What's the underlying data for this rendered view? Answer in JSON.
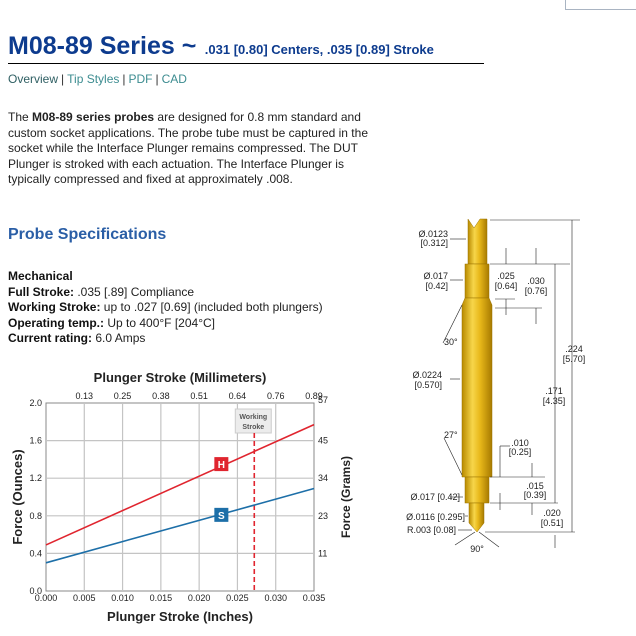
{
  "header": {
    "title": "M08-89 Series ~",
    "subtitle": ".031 [0.80] Centers, .035 [0.89] Stroke"
  },
  "nav": [
    {
      "label": "Overview"
    },
    {
      "label": "Tip Styles"
    },
    {
      "label": "PDF"
    },
    {
      "label": "CAD"
    }
  ],
  "intro": {
    "bold": "M08-89 series probes",
    "text": " are designed for 0.8 mm standard and custom socket applications. The probe tube must be captured in the socket while the Interface Plunger remains compressed. The DUT Plunger is stroked with each actuation. The Interface Plunger is typically compressed and fixed at approximately .008."
  },
  "intro_prefix": "The ",
  "specs": {
    "heading": "Probe Specifications",
    "section": "Mechanical",
    "rows": [
      {
        "label": "Full Stroke:",
        "value": " .035 [.89] Compliance"
      },
      {
        "label": "Working Stroke:",
        "value": " up to .027 [0.69] (included both plungers)"
      },
      {
        "label": "Operating temp.:",
        "value": " Up to 400°F [204°C]"
      },
      {
        "label": "Current rating:",
        "value": " 6.0 Amps"
      }
    ]
  },
  "chart_data": {
    "type": "line",
    "title": "Plunger Stroke (Millimeters)",
    "xlabel": "Plunger Stroke (Inches)",
    "ylabel": "Force (Ounces)",
    "y2label": "Force (Grams)",
    "xlim": [
      0,
      0.035
    ],
    "ylim": [
      0,
      2.0
    ],
    "x_ticks": [
      "0.000",
      "0.005",
      "0.010",
      "0.015",
      "0.020",
      "0.025",
      "0.030",
      "0.035"
    ],
    "x_tick_values": [
      0,
      0.005,
      0.01,
      0.015,
      0.02,
      0.025,
      0.03,
      0.035
    ],
    "x2_ticks": [
      "0.13",
      "0.25",
      "0.38",
      "0.51",
      "0.64",
      "0.76",
      "0.89"
    ],
    "y_ticks": [
      "0.0",
      "0.4",
      "0.8",
      "1.2",
      "1.6",
      "2.0"
    ],
    "y_tick_values": [
      0,
      0.4,
      0.8,
      1.2,
      1.6,
      2.0
    ],
    "y2_ticks": [
      "11",
      "23",
      "34",
      "45",
      "57"
    ],
    "grid": true,
    "series": [
      {
        "name": "H",
        "color": "#e0252f",
        "x": [
          0,
          0.035
        ],
        "y": [
          0.49,
          1.77
        ],
        "label_x": 0.0229,
        "label_y": 1.35
      },
      {
        "name": "S",
        "color": "#1d6fa8",
        "x": [
          0,
          0.035
        ],
        "y": [
          0.3,
          1.09
        ],
        "label_x": 0.0229,
        "label_y": 0.81
      }
    ],
    "annotation": {
      "text1": "Working",
      "text2": "Stroke",
      "x": 0.0272,
      "color": "#e0252f"
    }
  },
  "diagram": {
    "labels": {
      "tip_dia": "Ø.0123",
      "tip_dia_mm": "[0.312]",
      "collar_dia": "Ø.017",
      "collar_dia_mm": "[0.42]",
      "angle_top": "30°",
      "body_dia": "Ø.0224",
      "body_dia_mm": "[0.570]",
      "angle_bottom": "27°",
      "bottom_collar": "Ø.017 [0.42]",
      "bottom_plunger": "Ø.0116 [0.295]",
      "radius": "R.003 [0.08]",
      "angle_tip": "90°",
      "d025": ".025",
      "d025_mm": "[0.64]",
      "d030": ".030",
      "d030_mm": "[0.76]",
      "d224": ".224",
      "d224_mm": "[5.70]",
      "d171": ".171",
      "d171_mm": "[4.35]",
      "d010": ".010",
      "d010_mm": "[0.25]",
      "d015": ".015",
      "d015_mm": "[0.39]",
      "d020": ".020",
      "d020_mm": "[0.51]"
    }
  }
}
